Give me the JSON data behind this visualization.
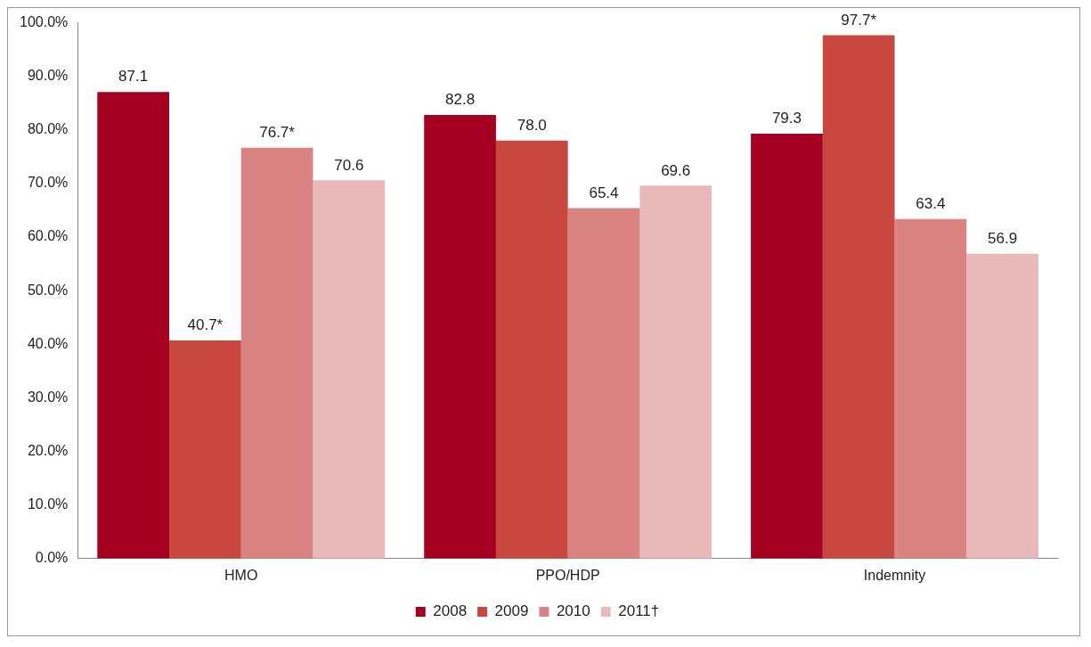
{
  "chart_data": {
    "type": "bar",
    "categories": [
      "HMO",
      "PPO/HDP",
      "Indemnity"
    ],
    "series": [
      {
        "name": "2008",
        "color": "#a50021",
        "values": [
          87.1,
          82.8,
          79.3
        ],
        "value_labels": [
          "87.1",
          "82.8",
          "79.3"
        ]
      },
      {
        "name": "2009",
        "color": "#c8473f",
        "values": [
          40.7,
          78.0,
          97.7
        ],
        "value_labels": [
          "40.7*",
          "78.0",
          "97.7*"
        ]
      },
      {
        "name": "2010",
        "color": "#d98383",
        "values": [
          76.7,
          65.4,
          63.4
        ],
        "value_labels": [
          "76.7*",
          "65.4",
          "63.4"
        ]
      },
      {
        "name": "2011†",
        "color": "#e9b8b8",
        "values": [
          70.6,
          69.6,
          56.9
        ],
        "value_labels": [
          "70.6",
          "69.6",
          "56.9"
        ]
      }
    ],
    "ylim": [
      0,
      100
    ],
    "yticks": [
      {
        "value": 0,
        "label": "0.0%"
      },
      {
        "value": 10,
        "label": "10.0%"
      },
      {
        "value": 20,
        "label": "20.0%"
      },
      {
        "value": 30,
        "label": "30.0%"
      },
      {
        "value": 40,
        "label": "40.0%"
      },
      {
        "value": 50,
        "label": "50.0%"
      },
      {
        "value": 60,
        "label": "60.0%"
      },
      {
        "value": 70,
        "label": "70.0%"
      },
      {
        "value": 80,
        "label": "80.0%"
      },
      {
        "value": 90,
        "label": "90.0%"
      },
      {
        "value": 100,
        "label": "100.0%"
      }
    ],
    "grid": false,
    "legend": "bottom"
  }
}
